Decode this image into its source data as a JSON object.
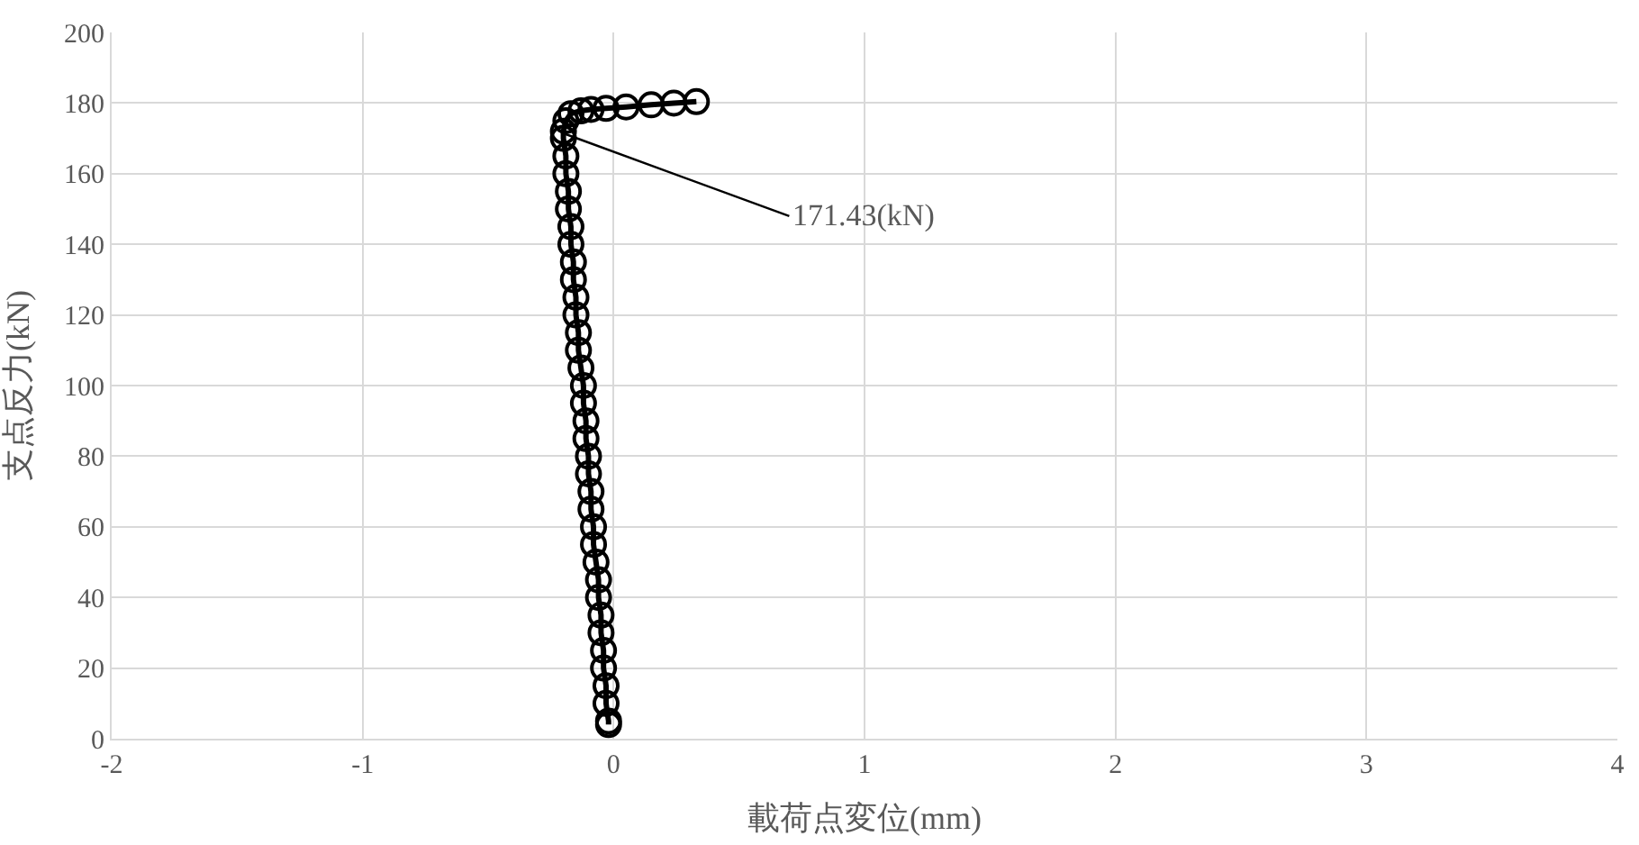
{
  "chart_data": {
    "type": "line",
    "xlabel": "載荷点変位(mm)",
    "ylabel": "支点反力(kN)",
    "xlim": [
      -2,
      4
    ],
    "xticks": [
      -2,
      -1,
      0,
      1,
      2,
      3,
      4
    ],
    "ylim": [
      0,
      200
    ],
    "yticks": [
      0,
      20,
      40,
      60,
      80,
      100,
      120,
      140,
      160,
      180,
      200
    ],
    "grid": true,
    "marker": "circle",
    "line_style": "solid",
    "series": [
      {
        "color": "#000000",
        "x": [
          -0.02,
          -0.02,
          -0.03,
          -0.03,
          -0.04,
          -0.04,
          -0.05,
          -0.05,
          -0.06,
          -0.06,
          -0.07,
          -0.08,
          -0.08,
          -0.09,
          -0.09,
          -0.1,
          -0.1,
          -0.11,
          -0.11,
          -0.12,
          -0.12,
          -0.13,
          -0.14,
          -0.14,
          -0.15,
          -0.15,
          -0.16,
          -0.16,
          -0.17,
          -0.17,
          -0.18,
          -0.18,
          -0.19,
          -0.19,
          -0.2,
          -0.2,
          -0.19,
          -0.17,
          -0.13,
          -0.09,
          -0.03,
          0.05,
          0.15,
          0.24,
          0.33
        ],
        "values": [
          4,
          5,
          10,
          15,
          20,
          25,
          30,
          35,
          40,
          45,
          50,
          55,
          60,
          65,
          70,
          75,
          80,
          85,
          90,
          95,
          100,
          105,
          110,
          115,
          120,
          125,
          130,
          135,
          140,
          145,
          150,
          155,
          160,
          165,
          170,
          172,
          175,
          177,
          177.8,
          178.2,
          178.5,
          178.9,
          179.5,
          180,
          180.4
        ]
      }
    ],
    "annotations": [
      {
        "text": "171.43(kN)",
        "x": -0.2,
        "y": 171.43
      }
    ]
  }
}
